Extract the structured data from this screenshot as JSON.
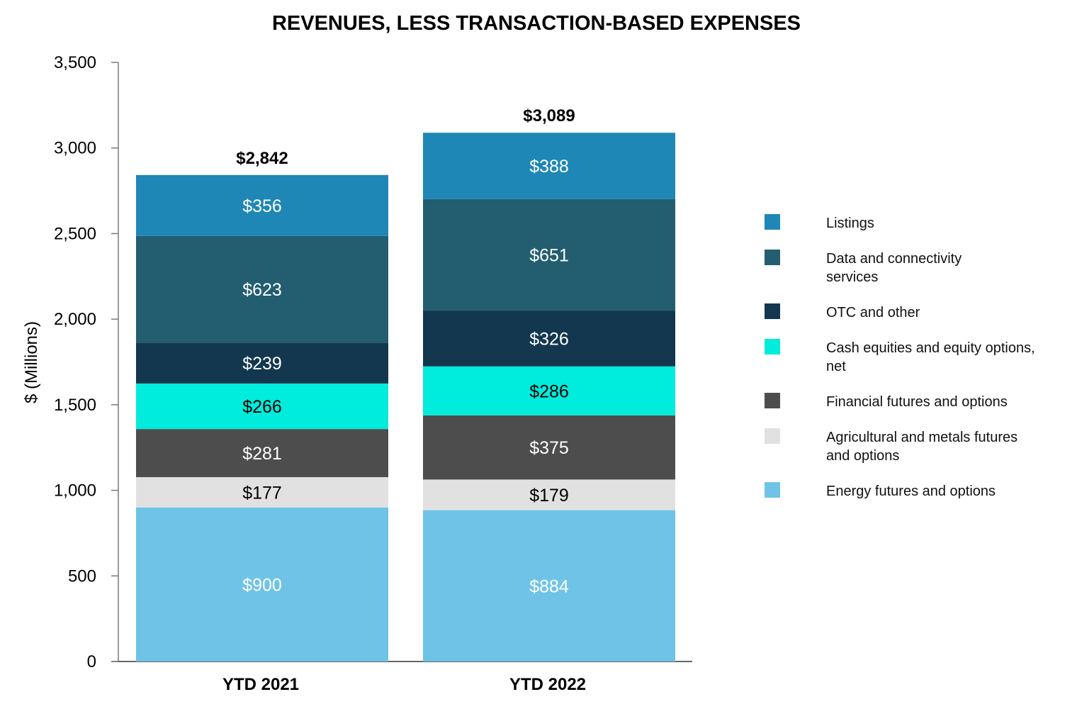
{
  "chart_data": {
    "type": "bar",
    "stacked": true,
    "title": "REVENUES, LESS TRANSACTION-BASED EXPENSES",
    "xlabel": "",
    "ylabel": "$ (Millions)",
    "ylim": [
      0,
      3500
    ],
    "yticks": [
      0,
      500,
      1000,
      1500,
      2000,
      2500,
      3000,
      3500
    ],
    "ytick_labels": [
      "0",
      "500",
      "1,000",
      "1,500",
      "2,000",
      "2,500",
      "3,000",
      "3,500"
    ],
    "categories": [
      "YTD 2021",
      "YTD 2022"
    ],
    "totals": [
      "$2,842",
      "$3,089"
    ],
    "total_values": [
      2842,
      3089
    ],
    "legend_position": "right",
    "series": [
      {
        "name": "Energy futures and options",
        "legend_lines": [
          "Energy futures and options"
        ],
        "color": "#6fc3e6",
        "label_color": "#ffffff",
        "values": [
          900,
          884
        ],
        "labels": [
          "$900",
          "$884"
        ]
      },
      {
        "name": "Agricultural and metals futures and options",
        "legend_lines": [
          "Agricultural and metals futures",
          "and options"
        ],
        "color": "#e1e1e1",
        "label_color": "#000000",
        "values": [
          177,
          179
        ],
        "labels": [
          "$177",
          "$179"
        ]
      },
      {
        "name": "Financial futures and options",
        "legend_lines": [
          "Financial futures and options"
        ],
        "color": "#4d4d4d",
        "label_color": "#ffffff",
        "values": [
          281,
          375
        ],
        "labels": [
          "$281",
          "$375"
        ]
      },
      {
        "name": "Cash equities and equity options, net",
        "legend_lines": [
          "Cash equities and equity options,",
          " net"
        ],
        "color": "#00ecdc",
        "label_color": "#000000",
        "values": [
          266,
          286
        ],
        "labels": [
          "$266",
          "$286"
        ]
      },
      {
        "name": "OTC and other",
        "legend_lines": [
          "OTC and other"
        ],
        "color": "#12374e",
        "label_color": "#ffffff",
        "values": [
          239,
          326
        ],
        "labels": [
          "$239",
          "$326"
        ]
      },
      {
        "name": "Data and connectivity services",
        "legend_lines": [
          "Data and connectivity",
          "services"
        ],
        "color": "#235d70",
        "label_color": "#ffffff",
        "values": [
          623,
          651
        ],
        "labels": [
          "$623",
          "$651"
        ]
      },
      {
        "name": "Listings",
        "legend_lines": [
          "Listings"
        ],
        "color": "#1e87b5",
        "label_color": "#ffffff",
        "values": [
          356,
          388
        ],
        "labels": [
          "$356",
          "$388"
        ]
      }
    ]
  }
}
